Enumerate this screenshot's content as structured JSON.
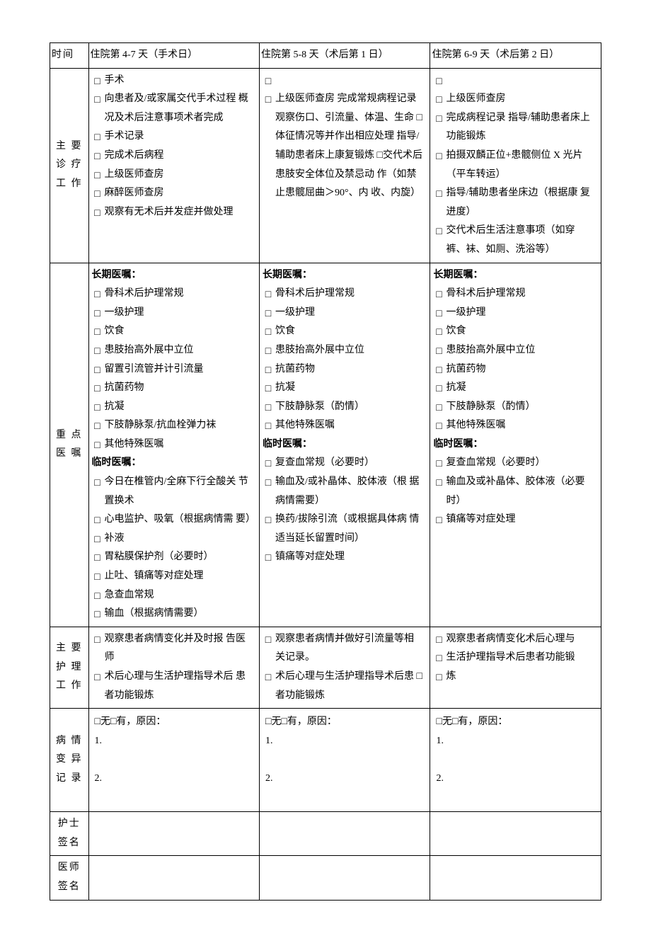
{
  "rows": {
    "time": "时间",
    "work": "主 要 诊 疗 工 作",
    "orders": "重 点 医 嘱",
    "nursing": "主 要 护 理 工 作",
    "variance": "病 情 变 异 记 录",
    "nurseSign": "护士 签名",
    "docSign": "医师 签名"
  },
  "cols": [
    {
      "time": "住院第 4-7 天（手术日）",
      "work": [
        "手术",
        "向患者及/或家属交代手术过程 概况及术后注意事项术者完成",
        "手术记录",
        "完成术后病程",
        "上级医师查房",
        "麻醉医师查房",
        "观察有无术后并发症并做处理"
      ],
      "orders": {
        "long_label": "长期医嘱：",
        "long": [
          "骨科术后护理常规",
          "一级护理",
          "饮食",
          "患肢抬高外展中立位",
          "留置引流管并计引流量",
          "抗菌药物",
          "抗凝",
          "下肢静脉泵/抗血栓弹力袜",
          "其他特殊医嘱"
        ],
        "temp_label": "临时医嘱：",
        "temp": [
          "今日在椎管内/全麻下行全酸关 节置换术",
          "心电监护、吸氧（根据病情需 要）",
          "补液",
          "胃粘膜保护剂（必要时）",
          "止吐、镇痛等对症处理",
          "急查血常规",
          "输血（根据病情需要）"
        ]
      },
      "nursing": [
        "观察患者病情变化并及时报 告医师",
        "术后心理与生活护理指导术后 患者功能锻炼"
      ],
      "variance": {
        "head": "□无□有，原因：",
        "l1": "1.",
        "l2": "2."
      }
    },
    {
      "time": "住院第 5-8 天（术后第 1 日）",
      "work": [
        "",
        "上级医师查房 完成常规病程记录 观察伤口、引流量、体温、生命 □体征情况等并作出相应处理 指导/辅助患者床上康复锻炼 □交代术后患肢安全体位及禁忌动 作（如禁止患髋屈曲＞90°、内 收、内旋）"
      ],
      "workSpecial": true,
      "orders": {
        "long_label": "长期医嘱：",
        "long": [
          "骨科术后护理常规",
          "一级护理",
          "饮食",
          "患肢抬高外展中立位",
          "抗菌药物",
          "抗凝",
          "下肢静脉泵（酌情）",
          "其他特殊医嘱"
        ],
        "temp_label": "临时医嘱：",
        "temp": [
          "复查血常规（必要时）",
          "输血及/或补晶体、胶体液（根 据病情需要）",
          "换药/拔除引流（或根据具体病 情适当延长留置时间）",
          "镇痛等对症处理"
        ]
      },
      "nursing": [
        "观察患者病情并做好引流量等相 关记录。",
        "术后心理与生活护理指导术后患 □者功能锻炼"
      ],
      "variance": {
        "head": "□无□有，原因：",
        "l1": "1.",
        "l2": "2."
      }
    },
    {
      "time": "住院第 6-9 天（术后第 2 日）",
      "work": [
        "",
        "上级医师查房",
        "完成病程记录 指导/辅助患者床上功能锻炼",
        "拍摄双麟正位+患髋侧位 X 光片 （平车转运）",
        "指导/辅助患者坐床边（根据康 复进度）",
        "交代术后生活注意事项（如穿 裤、袜、如厕、洗浴等）"
      ],
      "orders": {
        "long_label": "长期医嘱：",
        "long": [
          "骨科术后护理常规",
          "一级护理",
          "饮食",
          "患肢抬高外展中立位",
          "抗菌药物",
          "抗凝",
          "下肢静脉泵（酌情）",
          "其他特殊医嘱"
        ],
        "temp_label": "临时医嘱：",
        "temp": [
          "复查血常规（必要时）",
          "输血及或补晶体、胶体液（必要 时）",
          "镇痛等对症处理"
        ]
      },
      "nursing": [
        "观察患者病情变化术后心理与",
        "生活护理指导术后患者功能锻",
        "炼"
      ],
      "variance": {
        "head": "□无□有，原因：",
        "l1": "1.",
        "l2": "2."
      }
    }
  ]
}
